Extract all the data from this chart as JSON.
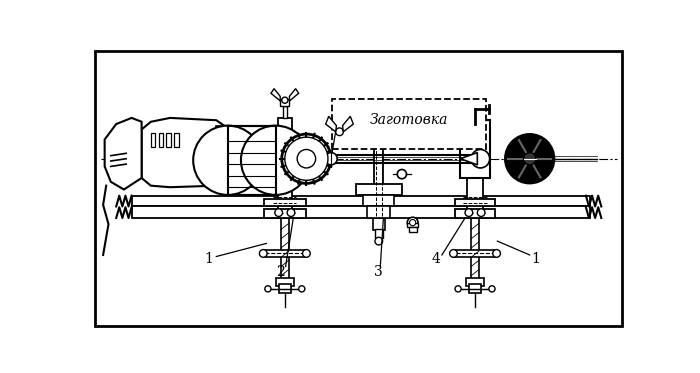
{
  "background_color": "#ffffff",
  "line_color": "#000000",
  "label_1": "1",
  "label_2": "2",
  "label_3": "3",
  "label_4": "4",
  "zaготовка": "Заготовка",
  "fig_width": 7.0,
  "fig_height": 3.73,
  "dpi": 100
}
